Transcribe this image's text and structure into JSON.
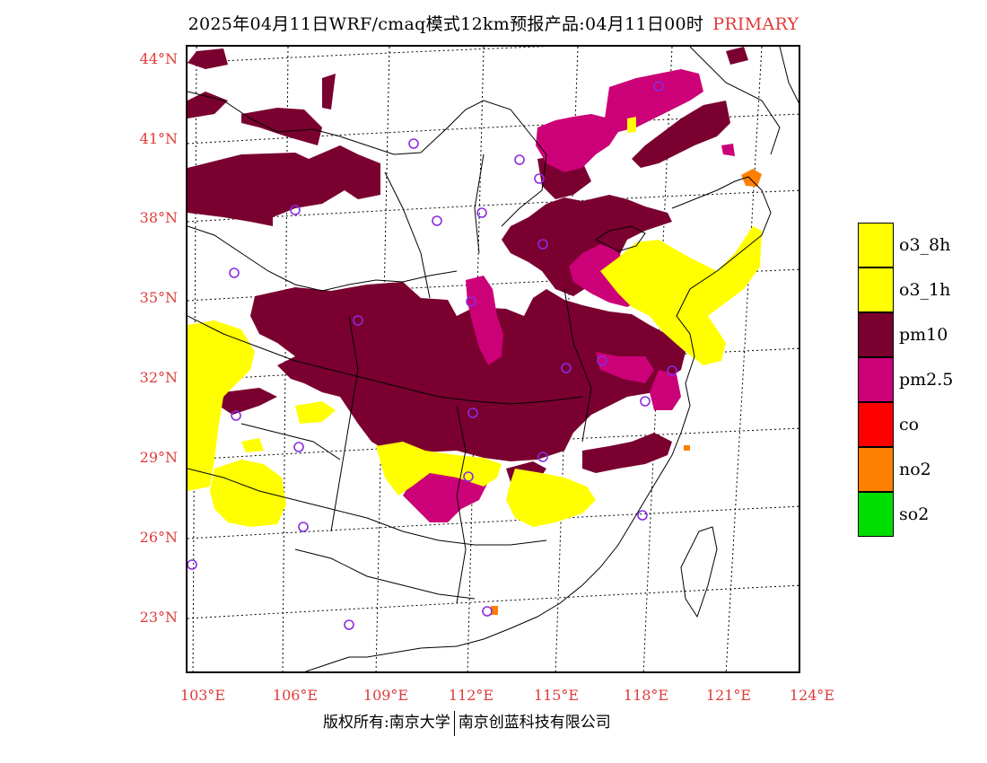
{
  "header": {
    "title": "2025年04月11日WRF/cmaq模式12km预报产品:04月11日00时",
    "tag": "PRIMARY"
  },
  "axes": {
    "lat_labels": [
      "44°N",
      "41°N",
      "38°N",
      "35°N",
      "32°N",
      "29°N",
      "26°N",
      "23°N"
    ],
    "lon_labels": [
      "103°E",
      "106°E",
      "109°E",
      "112°E",
      "115°E",
      "118°E",
      "121°E",
      "124°E"
    ]
  },
  "legend": [
    {
      "label": "o3_8h",
      "color": "#ffff00"
    },
    {
      "label": "o3_1h",
      "color": "#ffff00"
    },
    {
      "label": "pm10",
      "color": "#7a0030"
    },
    {
      "label": "pm2.5",
      "color": "#cc0077"
    },
    {
      "label": "co",
      "color": "#ff0000"
    },
    {
      "label": "no2",
      "color": "#ff7f00"
    },
    {
      "label": "so2",
      "color": "#00dd00"
    }
  ],
  "colors": {
    "o3": "#ffff00",
    "pm10": "#7a0030",
    "pm25": "#cc0077",
    "no2": "#ff7f00",
    "station": "#8a2be2",
    "axis_text": "#e03a3a"
  },
  "footer": {
    "left": "版权所有:南京大学",
    "right": "南京创蓝科技有限公司"
  }
}
